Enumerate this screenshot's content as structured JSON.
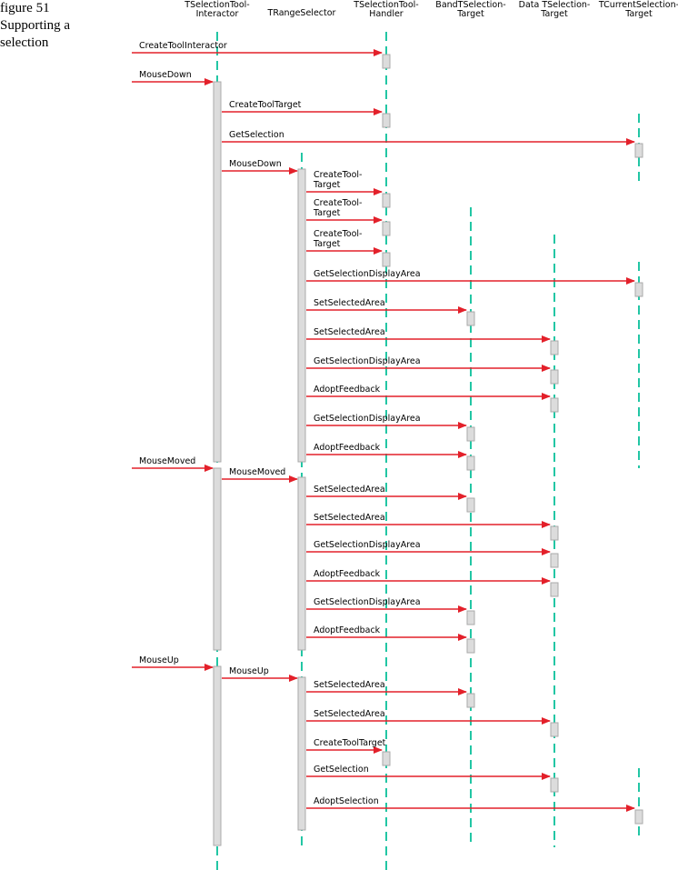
{
  "caption": [
    "figure 51",
    "Supporting a",
    "selection"
  ],
  "lifelines": [
    [
      "TSelectionTool-",
      "Interactor"
    ],
    [
      "TRangeSelector"
    ],
    [
      "TSelectionTool-",
      "Handler"
    ],
    [
      "BandTSelection-",
      "Target"
    ],
    [
      "Data TSelection-",
      "Target"
    ],
    [
      "TCurrentSelection-",
      "Target"
    ]
  ],
  "messages": [
    {
      "label": [
        "CreateToolInteractor"
      ]
    },
    {
      "label": [
        "MouseDown"
      ]
    },
    {
      "label": [
        "CreateToolTarget"
      ]
    },
    {
      "label": [
        "GetSelection"
      ]
    },
    {
      "label": [
        "MouseDown"
      ]
    },
    {
      "label": [
        "CreateTool-",
        "Target"
      ]
    },
    {
      "label": [
        "CreateTool-",
        "Target"
      ]
    },
    {
      "label": [
        "CreateTool-",
        "Target"
      ]
    },
    {
      "label": [
        "GetSelectionDisplayArea"
      ]
    },
    {
      "label": [
        "SetSelectedArea"
      ]
    },
    {
      "label": [
        "SetSelectedArea"
      ]
    },
    {
      "label": [
        "GetSelectionDisplayArea"
      ]
    },
    {
      "label": [
        "AdoptFeedback"
      ]
    },
    {
      "label": [
        "GetSelectionDisplayArea"
      ]
    },
    {
      "label": [
        "AdoptFeedback"
      ]
    },
    {
      "label": [
        "MouseMoved"
      ]
    },
    {
      "label": [
        "MouseMoved"
      ]
    },
    {
      "label": [
        "SetSelectedArea"
      ]
    },
    {
      "label": [
        "SetSelectedArea"
      ]
    },
    {
      "label": [
        "GetSelectionDisplayArea"
      ]
    },
    {
      "label": [
        "AdoptFeedback"
      ]
    },
    {
      "label": [
        "GetSelectionDisplayArea"
      ]
    },
    {
      "label": [
        "AdoptFeedback"
      ]
    },
    {
      "label": [
        "MouseUp"
      ]
    },
    {
      "label": [
        "MouseUp"
      ]
    },
    {
      "label": [
        "SetSelectedArea"
      ]
    },
    {
      "label": [
        "SetSelectedArea"
      ]
    },
    {
      "label": [
        "CreateToolTarget"
      ]
    },
    {
      "label": [
        "GetSelection"
      ]
    },
    {
      "label": [
        "AdoptSelection"
      ]
    }
  ]
}
